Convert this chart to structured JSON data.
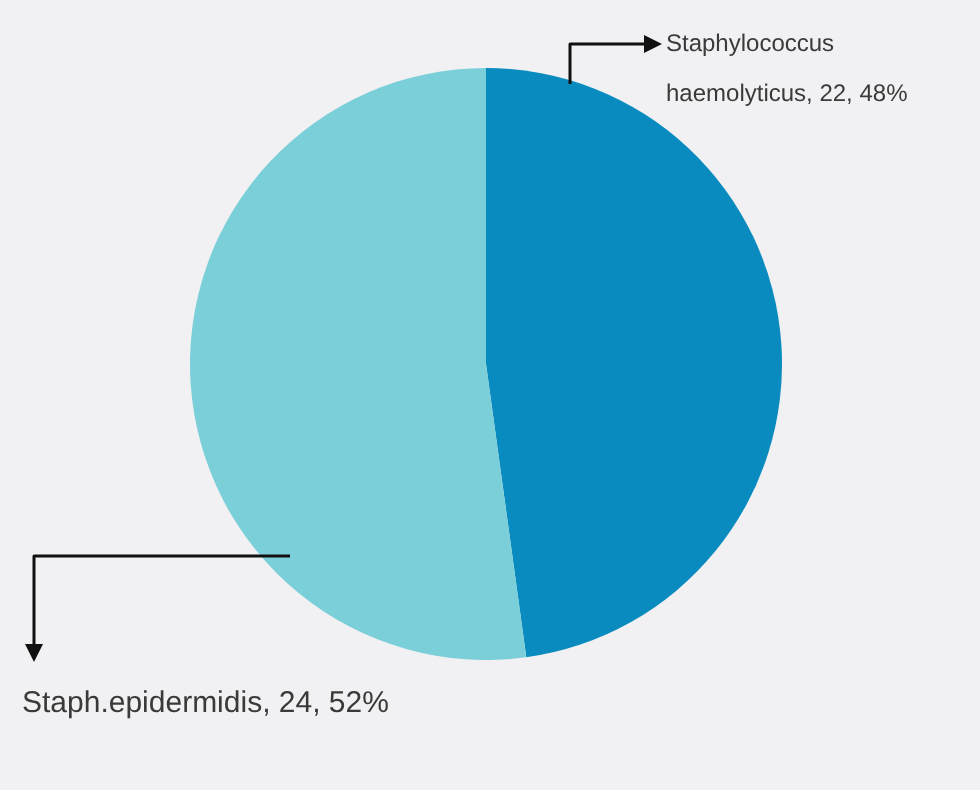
{
  "chart_data": {
    "type": "pie",
    "categories": [
      "Staphylococcus haemolyticus",
      "Staph.epidermidis"
    ],
    "values": [
      22,
      24
    ],
    "colors": [
      "#0a8bc0",
      "#7bcfd8"
    ],
    "value_labels": [
      "22, 48%",
      "24, 52%"
    ],
    "legend": false
  }
}
